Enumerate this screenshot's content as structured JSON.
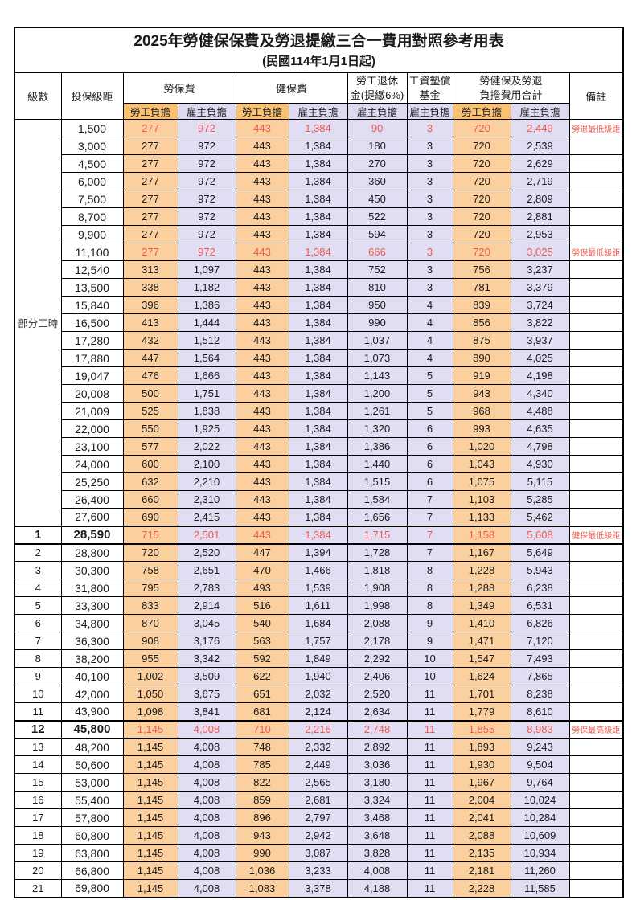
{
  "title": "2025年勞健保保費及勞退提繳三合一費用對照參考用表",
  "subtitle": "(民國114年1月1日起)",
  "columns": {
    "level": "級數",
    "bracket": "投保級距",
    "labor_insurance": "勞保費",
    "health_insurance": "健保費",
    "pension_line1": "勞工退休",
    "pension_line2": "金(提繳6%)",
    "wage_fund_line1": "工資墊償",
    "wage_fund_line2": "基金",
    "total_line1": "勞健保及勞退",
    "total_line2": "負擔費用合計",
    "remark": "備註",
    "employee_share": "勞工負擔",
    "employer_share": "雇主負擔"
  },
  "part_time_label": "部分工時",
  "part_time_row_count": 23,
  "colors": {
    "employee_bg": "#fbcf9e",
    "employee_header_bg": "#fac172",
    "employer_bg": "#e1ddf2",
    "employer_header_bg": "#ded9f0",
    "highlight_red": "#ee5a52"
  },
  "rows": [
    {
      "level": "",
      "bracket": "1,500",
      "labor_employee": "277",
      "labor_employer": "972",
      "health_employee": "443",
      "health_employer": "1,384",
      "pension_employer": "90",
      "wage_fund_employer": "3",
      "total_employee": "720",
      "total_employer": "2,449",
      "remark": "勞退最低級距",
      "highlight": true,
      "emphasis": false
    },
    {
      "level": "",
      "bracket": "3,000",
      "labor_employee": "277",
      "labor_employer": "972",
      "health_employee": "443",
      "health_employer": "1,384",
      "pension_employer": "180",
      "wage_fund_employer": "3",
      "total_employee": "720",
      "total_employer": "2,539",
      "remark": "",
      "highlight": false,
      "emphasis": false
    },
    {
      "level": "",
      "bracket": "4,500",
      "labor_employee": "277",
      "labor_employer": "972",
      "health_employee": "443",
      "health_employer": "1,384",
      "pension_employer": "270",
      "wage_fund_employer": "3",
      "total_employee": "720",
      "total_employer": "2,629",
      "remark": "",
      "highlight": false,
      "emphasis": false
    },
    {
      "level": "",
      "bracket": "6,000",
      "labor_employee": "277",
      "labor_employer": "972",
      "health_employee": "443",
      "health_employer": "1,384",
      "pension_employer": "360",
      "wage_fund_employer": "3",
      "total_employee": "720",
      "total_employer": "2,719",
      "remark": "",
      "highlight": false,
      "emphasis": false
    },
    {
      "level": "",
      "bracket": "7,500",
      "labor_employee": "277",
      "labor_employer": "972",
      "health_employee": "443",
      "health_employer": "1,384",
      "pension_employer": "450",
      "wage_fund_employer": "3",
      "total_employee": "720",
      "total_employer": "2,809",
      "remark": "",
      "highlight": false,
      "emphasis": false
    },
    {
      "level": "",
      "bracket": "8,700",
      "labor_employee": "277",
      "labor_employer": "972",
      "health_employee": "443",
      "health_employer": "1,384",
      "pension_employer": "522",
      "wage_fund_employer": "3",
      "total_employee": "720",
      "total_employer": "2,881",
      "remark": "",
      "highlight": false,
      "emphasis": false
    },
    {
      "level": "",
      "bracket": "9,900",
      "labor_employee": "277",
      "labor_employer": "972",
      "health_employee": "443",
      "health_employer": "1,384",
      "pension_employer": "594",
      "wage_fund_employer": "3",
      "total_employee": "720",
      "total_employer": "2,953",
      "remark": "",
      "highlight": false,
      "emphasis": false
    },
    {
      "level": "",
      "bracket": "11,100",
      "labor_employee": "277",
      "labor_employer": "972",
      "health_employee": "443",
      "health_employer": "1,384",
      "pension_employer": "666",
      "wage_fund_employer": "3",
      "total_employee": "720",
      "total_employer": "3,025",
      "remark": "勞保最低級距",
      "highlight": true,
      "emphasis": false
    },
    {
      "level": "",
      "bracket": "12,540",
      "labor_employee": "313",
      "labor_employer": "1,097",
      "health_employee": "443",
      "health_employer": "1,384",
      "pension_employer": "752",
      "wage_fund_employer": "3",
      "total_employee": "756",
      "total_employer": "3,237",
      "remark": "",
      "highlight": false,
      "emphasis": false
    },
    {
      "level": "",
      "bracket": "13,500",
      "labor_employee": "338",
      "labor_employer": "1,182",
      "health_employee": "443",
      "health_employer": "1,384",
      "pension_employer": "810",
      "wage_fund_employer": "3",
      "total_employee": "781",
      "total_employer": "3,379",
      "remark": "",
      "highlight": false,
      "emphasis": false
    },
    {
      "level": "",
      "bracket": "15,840",
      "labor_employee": "396",
      "labor_employer": "1,386",
      "health_employee": "443",
      "health_employer": "1,384",
      "pension_employer": "950",
      "wage_fund_employer": "4",
      "total_employee": "839",
      "total_employer": "3,724",
      "remark": "",
      "highlight": false,
      "emphasis": false
    },
    {
      "level": "",
      "bracket": "16,500",
      "labor_employee": "413",
      "labor_employer": "1,444",
      "health_employee": "443",
      "health_employer": "1,384",
      "pension_employer": "990",
      "wage_fund_employer": "4",
      "total_employee": "856",
      "total_employer": "3,822",
      "remark": "",
      "highlight": false,
      "emphasis": false
    },
    {
      "level": "",
      "bracket": "17,280",
      "labor_employee": "432",
      "labor_employer": "1,512",
      "health_employee": "443",
      "health_employer": "1,384",
      "pension_employer": "1,037",
      "wage_fund_employer": "4",
      "total_employee": "875",
      "total_employer": "3,937",
      "remark": "",
      "highlight": false,
      "emphasis": false
    },
    {
      "level": "",
      "bracket": "17,880",
      "labor_employee": "447",
      "labor_employer": "1,564",
      "health_employee": "443",
      "health_employer": "1,384",
      "pension_employer": "1,073",
      "wage_fund_employer": "4",
      "total_employee": "890",
      "total_employer": "4,025",
      "remark": "",
      "highlight": false,
      "emphasis": false
    },
    {
      "level": "",
      "bracket": "19,047",
      "labor_employee": "476",
      "labor_employer": "1,666",
      "health_employee": "443",
      "health_employer": "1,384",
      "pension_employer": "1,143",
      "wage_fund_employer": "5",
      "total_employee": "919",
      "total_employer": "4,198",
      "remark": "",
      "highlight": false,
      "emphasis": false
    },
    {
      "level": "",
      "bracket": "20,008",
      "labor_employee": "500",
      "labor_employer": "1,751",
      "health_employee": "443",
      "health_employer": "1,384",
      "pension_employer": "1,200",
      "wage_fund_employer": "5",
      "total_employee": "943",
      "total_employer": "4,340",
      "remark": "",
      "highlight": false,
      "emphasis": false
    },
    {
      "level": "",
      "bracket": "21,009",
      "labor_employee": "525",
      "labor_employer": "1,838",
      "health_employee": "443",
      "health_employer": "1,384",
      "pension_employer": "1,261",
      "wage_fund_employer": "5",
      "total_employee": "968",
      "total_employer": "4,488",
      "remark": "",
      "highlight": false,
      "emphasis": false
    },
    {
      "level": "",
      "bracket": "22,000",
      "labor_employee": "550",
      "labor_employer": "1,925",
      "health_employee": "443",
      "health_employer": "1,384",
      "pension_employer": "1,320",
      "wage_fund_employer": "6",
      "total_employee": "993",
      "total_employer": "4,635",
      "remark": "",
      "highlight": false,
      "emphasis": false
    },
    {
      "level": "",
      "bracket": "23,100",
      "labor_employee": "577",
      "labor_employer": "2,022",
      "health_employee": "443",
      "health_employer": "1,384",
      "pension_employer": "1,386",
      "wage_fund_employer": "6",
      "total_employee": "1,020",
      "total_employer": "4,798",
      "remark": "",
      "highlight": false,
      "emphasis": false
    },
    {
      "level": "",
      "bracket": "24,000",
      "labor_employee": "600",
      "labor_employer": "2,100",
      "health_employee": "443",
      "health_employer": "1,384",
      "pension_employer": "1,440",
      "wage_fund_employer": "6",
      "total_employee": "1,043",
      "total_employer": "4,930",
      "remark": "",
      "highlight": false,
      "emphasis": false
    },
    {
      "level": "",
      "bracket": "25,250",
      "labor_employee": "632",
      "labor_employer": "2,210",
      "health_employee": "443",
      "health_employer": "1,384",
      "pension_employer": "1,515",
      "wage_fund_employer": "6",
      "total_employee": "1,075",
      "total_employer": "5,115",
      "remark": "",
      "highlight": false,
      "emphasis": false
    },
    {
      "level": "",
      "bracket": "26,400",
      "labor_employee": "660",
      "labor_employer": "2,310",
      "health_employee": "443",
      "health_employer": "1,384",
      "pension_employer": "1,584",
      "wage_fund_employer": "7",
      "total_employee": "1,103",
      "total_employer": "5,285",
      "remark": "",
      "highlight": false,
      "emphasis": false
    },
    {
      "level": "",
      "bracket": "27,600",
      "labor_employee": "690",
      "labor_employer": "2,415",
      "health_employee": "443",
      "health_employer": "1,384",
      "pension_employer": "1,656",
      "wage_fund_employer": "7",
      "total_employee": "1,133",
      "total_employer": "5,462",
      "remark": "",
      "highlight": false,
      "emphasis": false
    },
    {
      "level": "1",
      "bracket": "28,590",
      "labor_employee": "715",
      "labor_employer": "2,501",
      "health_employee": "443",
      "health_employer": "1,384",
      "pension_employer": "1,715",
      "wage_fund_employer": "7",
      "total_employee": "1,158",
      "total_employer": "5,608",
      "remark": "健保最低級距",
      "highlight": true,
      "emphasis": true
    },
    {
      "level": "2",
      "bracket": "28,800",
      "labor_employee": "720",
      "labor_employer": "2,520",
      "health_employee": "447",
      "health_employer": "1,394",
      "pension_employer": "1,728",
      "wage_fund_employer": "7",
      "total_employee": "1,167",
      "total_employer": "5,649",
      "remark": "",
      "highlight": false,
      "emphasis": false
    },
    {
      "level": "3",
      "bracket": "30,300",
      "labor_employee": "758",
      "labor_employer": "2,651",
      "health_employee": "470",
      "health_employer": "1,466",
      "pension_employer": "1,818",
      "wage_fund_employer": "8",
      "total_employee": "1,228",
      "total_employer": "5,943",
      "remark": "",
      "highlight": false,
      "emphasis": false
    },
    {
      "level": "4",
      "bracket": "31,800",
      "labor_employee": "795",
      "labor_employer": "2,783",
      "health_employee": "493",
      "health_employer": "1,539",
      "pension_employer": "1,908",
      "wage_fund_employer": "8",
      "total_employee": "1,288",
      "total_employer": "6,238",
      "remark": "",
      "highlight": false,
      "emphasis": false
    },
    {
      "level": "5",
      "bracket": "33,300",
      "labor_employee": "833",
      "labor_employer": "2,914",
      "health_employee": "516",
      "health_employer": "1,611",
      "pension_employer": "1,998",
      "wage_fund_employer": "8",
      "total_employee": "1,349",
      "total_employer": "6,531",
      "remark": "",
      "highlight": false,
      "emphasis": false
    },
    {
      "level": "6",
      "bracket": "34,800",
      "labor_employee": "870",
      "labor_employer": "3,045",
      "health_employee": "540",
      "health_employer": "1,684",
      "pension_employer": "2,088",
      "wage_fund_employer": "9",
      "total_employee": "1,410",
      "total_employer": "6,826",
      "remark": "",
      "highlight": false,
      "emphasis": false
    },
    {
      "level": "7",
      "bracket": "36,300",
      "labor_employee": "908",
      "labor_employer": "3,176",
      "health_employee": "563",
      "health_employer": "1,757",
      "pension_employer": "2,178",
      "wage_fund_employer": "9",
      "total_employee": "1,471",
      "total_employer": "7,120",
      "remark": "",
      "highlight": false,
      "emphasis": false
    },
    {
      "level": "8",
      "bracket": "38,200",
      "labor_employee": "955",
      "labor_employer": "3,342",
      "health_employee": "592",
      "health_employer": "1,849",
      "pension_employer": "2,292",
      "wage_fund_employer": "10",
      "total_employee": "1,547",
      "total_employer": "7,493",
      "remark": "",
      "highlight": false,
      "emphasis": false
    },
    {
      "level": "9",
      "bracket": "40,100",
      "labor_employee": "1,002",
      "labor_employer": "3,509",
      "health_employee": "622",
      "health_employer": "1,940",
      "pension_employer": "2,406",
      "wage_fund_employer": "10",
      "total_employee": "1,624",
      "total_employer": "7,865",
      "remark": "",
      "highlight": false,
      "emphasis": false
    },
    {
      "level": "10",
      "bracket": "42,000",
      "labor_employee": "1,050",
      "labor_employer": "3,675",
      "health_employee": "651",
      "health_employer": "2,032",
      "pension_employer": "2,520",
      "wage_fund_employer": "11",
      "total_employee": "1,701",
      "total_employer": "8,238",
      "remark": "",
      "highlight": false,
      "emphasis": false
    },
    {
      "level": "11",
      "bracket": "43,900",
      "labor_employee": "1,098",
      "labor_employer": "3,841",
      "health_employee": "681",
      "health_employer": "2,124",
      "pension_employer": "2,634",
      "wage_fund_employer": "11",
      "total_employee": "1,779",
      "total_employer": "8,610",
      "remark": "",
      "highlight": false,
      "emphasis": false
    },
    {
      "level": "12",
      "bracket": "45,800",
      "labor_employee": "1,145",
      "labor_employer": "4,008",
      "health_employee": "710",
      "health_employer": "2,216",
      "pension_employer": "2,748",
      "wage_fund_employer": "11",
      "total_employee": "1,855",
      "total_employer": "8,983",
      "remark": "勞保最高級距",
      "highlight": true,
      "emphasis": true
    },
    {
      "level": "13",
      "bracket": "48,200",
      "labor_employee": "1,145",
      "labor_employer": "4,008",
      "health_employee": "748",
      "health_employer": "2,332",
      "pension_employer": "2,892",
      "wage_fund_employer": "11",
      "total_employee": "1,893",
      "total_employer": "9,243",
      "remark": "",
      "highlight": false,
      "emphasis": false
    },
    {
      "level": "14",
      "bracket": "50,600",
      "labor_employee": "1,145",
      "labor_employer": "4,008",
      "health_employee": "785",
      "health_employer": "2,449",
      "pension_employer": "3,036",
      "wage_fund_employer": "11",
      "total_employee": "1,930",
      "total_employer": "9,504",
      "remark": "",
      "highlight": false,
      "emphasis": false
    },
    {
      "level": "15",
      "bracket": "53,000",
      "labor_employee": "1,145",
      "labor_employer": "4,008",
      "health_employee": "822",
      "health_employer": "2,565",
      "pension_employer": "3,180",
      "wage_fund_employer": "11",
      "total_employee": "1,967",
      "total_employer": "9,764",
      "remark": "",
      "highlight": false,
      "emphasis": false
    },
    {
      "level": "16",
      "bracket": "55,400",
      "labor_employee": "1,145",
      "labor_employer": "4,008",
      "health_employee": "859",
      "health_employer": "2,681",
      "pension_employer": "3,324",
      "wage_fund_employer": "11",
      "total_employee": "2,004",
      "total_employer": "10,024",
      "remark": "",
      "highlight": false,
      "emphasis": false
    },
    {
      "level": "17",
      "bracket": "57,800",
      "labor_employee": "1,145",
      "labor_employer": "4,008",
      "health_employee": "896",
      "health_employer": "2,797",
      "pension_employer": "3,468",
      "wage_fund_employer": "11",
      "total_employee": "2,041",
      "total_employer": "10,284",
      "remark": "",
      "highlight": false,
      "emphasis": false
    },
    {
      "level": "18",
      "bracket": "60,800",
      "labor_employee": "1,145",
      "labor_employer": "4,008",
      "health_employee": "943",
      "health_employer": "2,942",
      "pension_employer": "3,648",
      "wage_fund_employer": "11",
      "total_employee": "2,088",
      "total_employer": "10,609",
      "remark": "",
      "highlight": false,
      "emphasis": false
    },
    {
      "level": "19",
      "bracket": "63,800",
      "labor_employee": "1,145",
      "labor_employer": "4,008",
      "health_employee": "990",
      "health_employer": "3,087",
      "pension_employer": "3,828",
      "wage_fund_employer": "11",
      "total_employee": "2,135",
      "total_employer": "10,934",
      "remark": "",
      "highlight": false,
      "emphasis": false
    },
    {
      "level": "20",
      "bracket": "66,800",
      "labor_employee": "1,145",
      "labor_employer": "4,008",
      "health_employee": "1,036",
      "health_employer": "3,233",
      "pension_employer": "4,008",
      "wage_fund_employer": "11",
      "total_employee": "2,181",
      "total_employer": "11,260",
      "remark": "",
      "highlight": false,
      "emphasis": false
    },
    {
      "level": "21",
      "bracket": "69,800",
      "labor_employee": "1,145",
      "labor_employer": "4,008",
      "health_employee": "1,083",
      "health_employer": "3,378",
      "pension_employer": "4,188",
      "wage_fund_employer": "11",
      "total_employee": "2,228",
      "total_employer": "11,585",
      "remark": "",
      "highlight": false,
      "emphasis": false
    }
  ]
}
